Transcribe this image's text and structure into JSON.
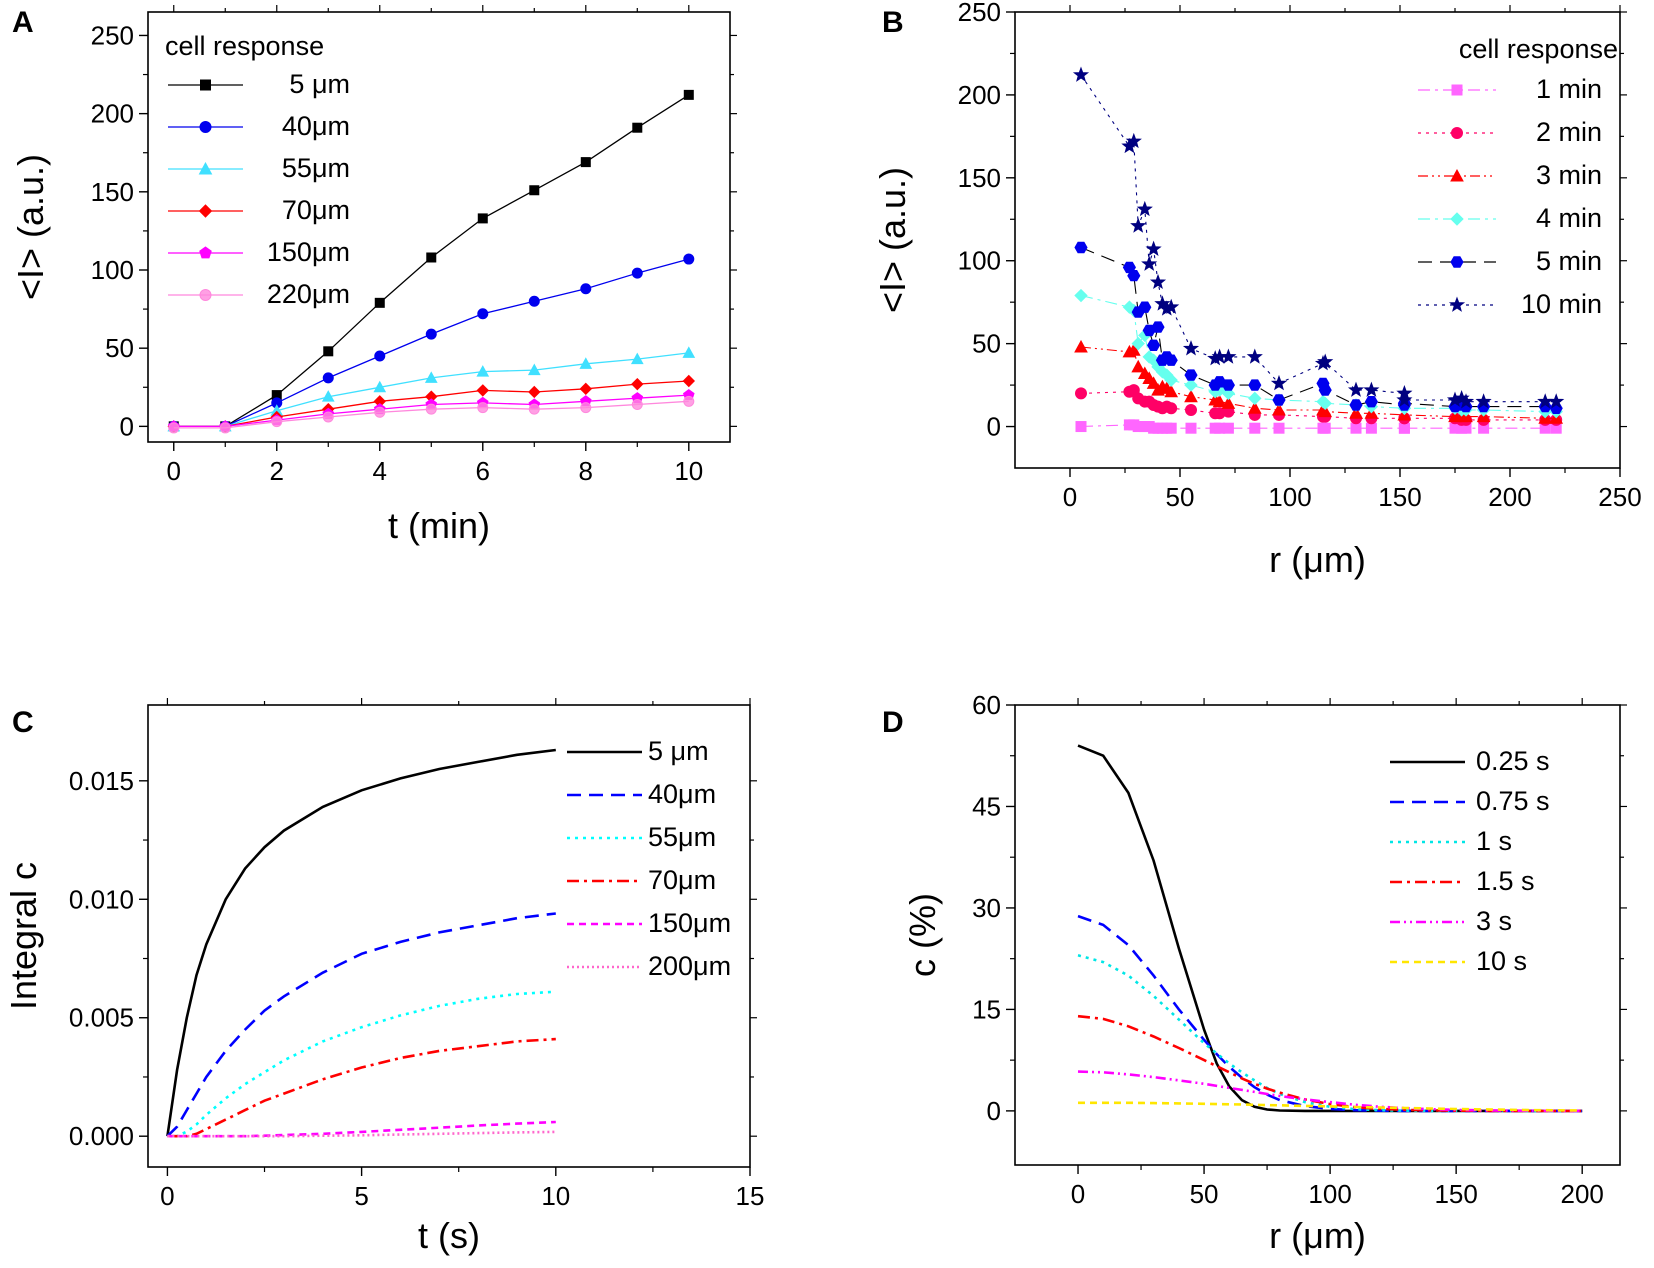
{
  "chart_data": [
    {
      "panel": "A",
      "type": "line",
      "title": "",
      "xlabel": "t (min)",
      "ylabel": "<I> (a.u.)",
      "xlim": [
        -0.5,
        10.8
      ],
      "ylim": [
        -10,
        265
      ],
      "xticks": [
        0,
        2,
        4,
        6,
        8,
        10
      ],
      "yticks": [
        0,
        50,
        100,
        150,
        200,
        250
      ],
      "legend_title": "cell response",
      "legend_position": "top-left",
      "x": [
        0,
        1,
        2,
        3,
        4,
        5,
        6,
        7,
        8,
        9,
        10
      ],
      "series": [
        {
          "name": "5 μm",
          "color": "#000000",
          "marker": "square",
          "values": [
            0,
            0,
            20,
            48,
            79,
            108,
            133,
            151,
            169,
            191,
            212
          ]
        },
        {
          "name": "40μm",
          "color": "#0000ee",
          "marker": "circle",
          "values": [
            0,
            0,
            15,
            31,
            45,
            59,
            72,
            80,
            88,
            98,
            107
          ]
        },
        {
          "name": "55μm",
          "color": "#40e0ff",
          "marker": "triangle",
          "values": [
            0,
            0,
            10,
            19,
            25,
            31,
            35,
            36,
            40,
            43,
            47
          ]
        },
        {
          "name": "70μm",
          "color": "#ff0000",
          "marker": "diamond",
          "values": [
            0,
            0,
            6,
            11,
            16,
            19,
            23,
            22,
            24,
            27,
            29
          ]
        },
        {
          "name": "150μm",
          "color": "#ff00ff",
          "marker": "pentagon",
          "values": [
            0,
            0,
            4,
            8,
            11,
            14,
            15,
            14,
            16,
            18,
            20
          ]
        },
        {
          "name": "220μm",
          "color": "#ff88dd",
          "marker": "sphere",
          "values": [
            -1,
            -1,
            3,
            6,
            9,
            11,
            12,
            11,
            12,
            14,
            16
          ]
        }
      ]
    },
    {
      "panel": "B",
      "type": "scatter",
      "title": "",
      "xlabel": "r (μm)",
      "ylabel": "<I> (a.u.)",
      "xlim": [
        -25,
        250
      ],
      "ylim": [
        -25,
        250
      ],
      "xticks": [
        0,
        50,
        100,
        150,
        200,
        250
      ],
      "yticks": [
        0,
        50,
        100,
        150,
        200,
        250
      ],
      "legend_title": "cell response",
      "legend_position": "top-right",
      "x": [
        5,
        27,
        29,
        31,
        34,
        36,
        38,
        40,
        42,
        44,
        46,
        55,
        66,
        68,
        72,
        84,
        95,
        115,
        116,
        130,
        137,
        152,
        152,
        175,
        178,
        180,
        188,
        216,
        221
      ],
      "series": [
        {
          "name": "1 min",
          "color": "#ff66ff",
          "marker": "square",
          "line": "dashdot",
          "values": [
            0,
            1,
            1,
            0,
            0,
            0,
            -1,
            -1,
            -1,
            -1,
            -1,
            -1,
            -1,
            -1,
            -1,
            -1,
            -1,
            -1,
            -1,
            -1,
            -1,
            -1,
            -1,
            -1,
            -1,
            -1,
            -1,
            -1,
            -1
          ]
        },
        {
          "name": "2 min",
          "color": "#ff0066",
          "marker": "circle",
          "line": "dotted",
          "values": [
            20,
            21,
            22,
            17,
            15,
            15,
            13,
            12,
            11,
            12,
            11,
            10,
            8,
            8,
            9,
            7,
            7,
            6,
            6,
            5,
            5,
            5,
            5,
            5,
            4,
            4,
            4,
            4,
            4
          ]
        },
        {
          "name": "3 min",
          "color": "#ff0000",
          "marker": "triangle",
          "line": "dashdotdot",
          "values": [
            48,
            45,
            46,
            36,
            32,
            29,
            26,
            22,
            24,
            23,
            21,
            18,
            16,
            15,
            14,
            11,
            10,
            10,
            9,
            8,
            8,
            7,
            7,
            6,
            6,
            6,
            6,
            5,
            5
          ]
        },
        {
          "name": "4 min",
          "color": "#66ffee",
          "marker": "diamond",
          "line": "dashdot",
          "values": [
            79,
            72,
            70,
            50,
            55,
            42,
            40,
            36,
            33,
            31,
            28,
            25,
            21,
            22,
            20,
            17,
            16,
            15,
            14,
            13,
            12,
            11,
            11,
            11,
            10,
            10,
            10,
            9,
            9
          ]
        },
        {
          "name": "5 min",
          "color": "#0000ee",
          "marker": "hexagon",
          "line": "dashed",
          "values": [
            108,
            96,
            91,
            69,
            72,
            58,
            49,
            60,
            40,
            42,
            40,
            31,
            25,
            27,
            25,
            25,
            16,
            26,
            22,
            13,
            15,
            13,
            14,
            12,
            13,
            12,
            12,
            12,
            11
          ]
        },
        {
          "name": "10 min",
          "color": "#000080",
          "marker": "star",
          "line": "dotted",
          "values": [
            212,
            169,
            172,
            121,
            131,
            98,
            107,
            87,
            74,
            71,
            72,
            47,
            41,
            42,
            42,
            42,
            26,
            38,
            39,
            22,
            22,
            20,
            16,
            16,
            17,
            15,
            15,
            15,
            15
          ]
        }
      ]
    },
    {
      "panel": "C",
      "type": "line",
      "title": "",
      "xlabel": "t (s)",
      "ylabel": "Integral c",
      "xlim": [
        -0.5,
        15
      ],
      "ylim": [
        -0.0013,
        0.0182
      ],
      "xticks": [
        0,
        5,
        10,
        15
      ],
      "yticks": [
        "0.000",
        "0.005",
        "0.010",
        "0.015"
      ],
      "legend_position": "top-right",
      "x": [
        0,
        0.25,
        0.5,
        0.75,
        1,
        1.5,
        2,
        2.5,
        3,
        4,
        5,
        6,
        7,
        8,
        9,
        10
      ],
      "series": [
        {
          "name": "5 μm",
          "color": "#000000",
          "line": "solid",
          "values": [
            0,
            0.0028,
            0.005,
            0.0068,
            0.0081,
            0.01,
            0.0113,
            0.0122,
            0.0129,
            0.0139,
            0.0146,
            0.0151,
            0.0155,
            0.0158,
            0.0161,
            0.0163
          ]
        },
        {
          "name": "40μm",
          "color": "#0000ff",
          "line": "dashed",
          "values": [
            0,
            0.0004,
            0.0011,
            0.0018,
            0.0025,
            0.0036,
            0.0045,
            0.0053,
            0.0059,
            0.0069,
            0.0077,
            0.0082,
            0.0086,
            0.0089,
            0.0092,
            0.0094
          ]
        },
        {
          "name": "55μm",
          "color": "#00ffff",
          "line": "dotted",
          "values": [
            0,
            0,
            0.0002,
            0.0005,
            0.0009,
            0.0016,
            0.0022,
            0.0027,
            0.0032,
            0.004,
            0.0046,
            0.0051,
            0.0055,
            0.0058,
            0.006,
            0.0061
          ]
        },
        {
          "name": "70μm",
          "color": "#ff0000",
          "line": "dashdot",
          "values": [
            0,
            0,
            0,
            0.0001,
            0.0003,
            0.0007,
            0.0011,
            0.0015,
            0.0018,
            0.0024,
            0.0029,
            0.0033,
            0.0036,
            0.0038,
            0.004,
            0.0041
          ]
        },
        {
          "name": "150μm",
          "color": "#ff00ff",
          "line": "shortdash",
          "values": [
            0,
            0,
            0,
            0,
            0,
            0,
            0,
            2e-05,
            5e-05,
            0.0001,
            0.00018,
            0.00027,
            0.00036,
            0.00045,
            0.00053,
            0.0006
          ]
        },
        {
          "name": "200μm",
          "color": "#ff66cc",
          "line": "shortdot",
          "values": [
            0,
            0,
            0,
            0,
            0,
            0,
            0,
            0,
            0,
            2e-05,
            4e-05,
            7e-05,
            0.0001,
            0.00013,
            0.00016,
            0.00018
          ]
        }
      ]
    },
    {
      "panel": "D",
      "type": "line",
      "title": "",
      "xlabel": "r (μm)",
      "ylabel": "c (%)",
      "xlim": [
        -25,
        215
      ],
      "ylim": [
        -8,
        60
      ],
      "xticks": [
        0,
        50,
        100,
        150,
        200
      ],
      "yticks": [
        0,
        15,
        30,
        45,
        60
      ],
      "legend_position": "top-right",
      "x": [
        0,
        10,
        20,
        30,
        40,
        50,
        55,
        60,
        65,
        70,
        75,
        80,
        90,
        100,
        110,
        120,
        130,
        140,
        150,
        160,
        170,
        180,
        190,
        200
      ],
      "series": [
        {
          "name": "0.25 s",
          "color": "#000000",
          "line": "solid",
          "values": [
            54,
            52.5,
            47,
            37,
            24,
            12,
            7,
            3.6,
            1.6,
            0.6,
            0.2,
            0.05,
            0,
            0,
            0,
            0,
            0,
            0,
            0,
            0,
            0,
            0,
            0,
            0
          ]
        },
        {
          "name": "0.75 s",
          "color": "#0000ff",
          "line": "dashed",
          "values": [
            28.8,
            27.5,
            24.5,
            20,
            15,
            10.5,
            8.4,
            6.5,
            4.9,
            3.5,
            2.4,
            1.6,
            0.7,
            0.3,
            0.1,
            0.03,
            0,
            0,
            0,
            0,
            0,
            0,
            0,
            0
          ]
        },
        {
          "name": "1 s",
          "color": "#00e6e6",
          "line": "dotted",
          "values": [
            23,
            22,
            20,
            17,
            13.5,
            10,
            8.5,
            7,
            5.7,
            4.5,
            3.4,
            2.5,
            1.3,
            0.6,
            0.25,
            0.1,
            0.03,
            0,
            0,
            0,
            0,
            0,
            0,
            0
          ]
        },
        {
          "name": "1.5 s",
          "color": "#ff0000",
          "line": "dashdot",
          "values": [
            14,
            13.6,
            12.5,
            11,
            9.3,
            7.5,
            6.6,
            5.7,
            4.8,
            4,
            3.3,
            2.7,
            1.7,
            1,
            0.55,
            0.3,
            0.15,
            0.07,
            0.03,
            0,
            0,
            0,
            0,
            0
          ]
        },
        {
          "name": "3 s",
          "color": "#ff00ff",
          "line": "dashdotdot",
          "values": [
            5.8,
            5.7,
            5.4,
            5,
            4.5,
            4,
            3.7,
            3.4,
            3.1,
            2.8,
            2.5,
            2.2,
            1.7,
            1.3,
            0.9,
            0.6,
            0.4,
            0.25,
            0.15,
            0.08,
            0.04,
            0.02,
            0,
            0
          ]
        },
        {
          "name": "10 s",
          "color": "#ffe600",
          "line": "shortdash",
          "values": [
            1.2,
            1.2,
            1.2,
            1.15,
            1.1,
            1.05,
            1.0,
            0.97,
            0.94,
            0.9,
            0.86,
            0.82,
            0.74,
            0.66,
            0.58,
            0.5,
            0.42,
            0.35,
            0.28,
            0.22,
            0.17,
            0.12,
            0.08,
            0.05
          ]
        }
      ]
    }
  ]
}
